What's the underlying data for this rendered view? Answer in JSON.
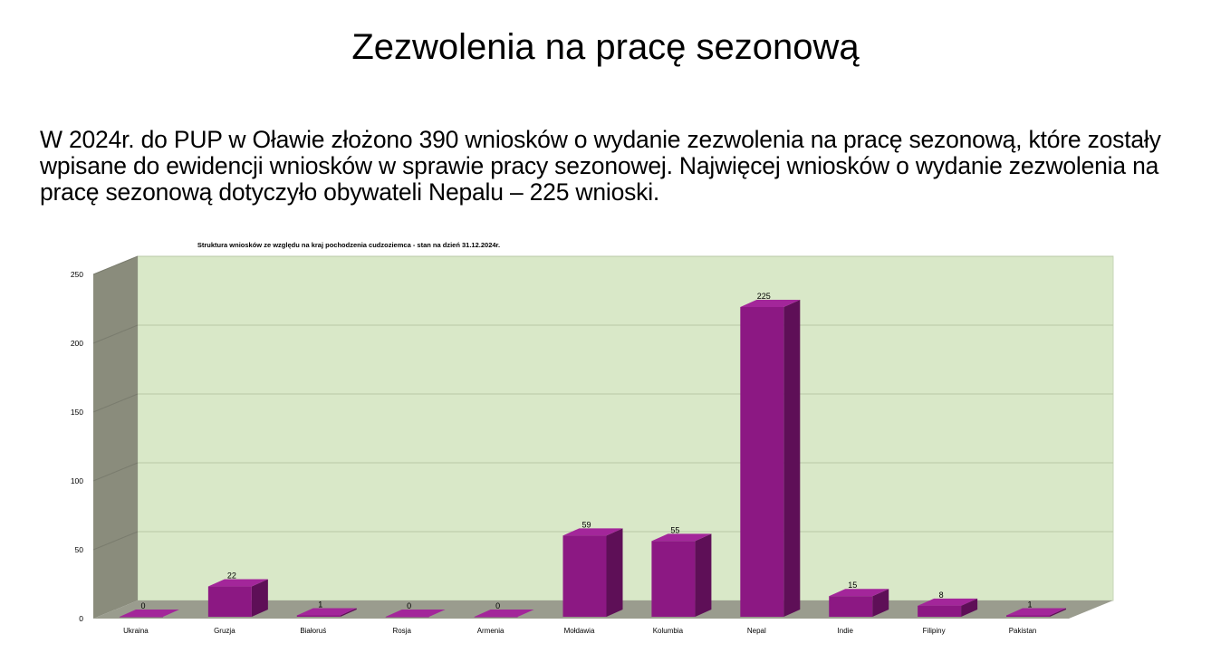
{
  "slide": {
    "title": "Zezwolenia na pracę sezonową",
    "body": "W 2024r. do PUP w Oławie złożono 390 wniosków o wydanie zezwolenia na pracę sezonową, które zostały wpisane do ewidencji wniosków w sprawie pracy sezonowej. Najwięcej wniosków o wydanie zezwolenia na pracę sezonową dotyczyło obywateli Nepalu – 225 wnioski."
  },
  "chart_data": {
    "type": "bar",
    "title": "Struktura wniosków ze względu na kraj pochodzenia cudzoziemca - stan na dzień 31.12.2024r.",
    "categories": [
      "Ukraina",
      "Gruzja",
      "Białoruś",
      "Rosja",
      "Armenia",
      "Mołdawia",
      "Kolumbia",
      "Nepal",
      "Indie",
      "Filipiny",
      "Pakistan"
    ],
    "values": [
      0,
      22,
      1,
      0,
      0,
      59,
      55,
      225,
      15,
      8,
      1
    ],
    "ylim": [
      0,
      250
    ],
    "yticks": [
      0,
      50,
      100,
      150,
      200,
      250
    ],
    "grid": true,
    "legend": "none",
    "colors": {
      "bar_front": "#8c1883",
      "bar_side": "#5e0f57",
      "bar_top": "#a3269a",
      "plot_back": "#d9e8c8",
      "plot_wall": "#8a8c7c",
      "plot_floor": "#9a9c8e",
      "grid": "#b9c9a6"
    }
  }
}
